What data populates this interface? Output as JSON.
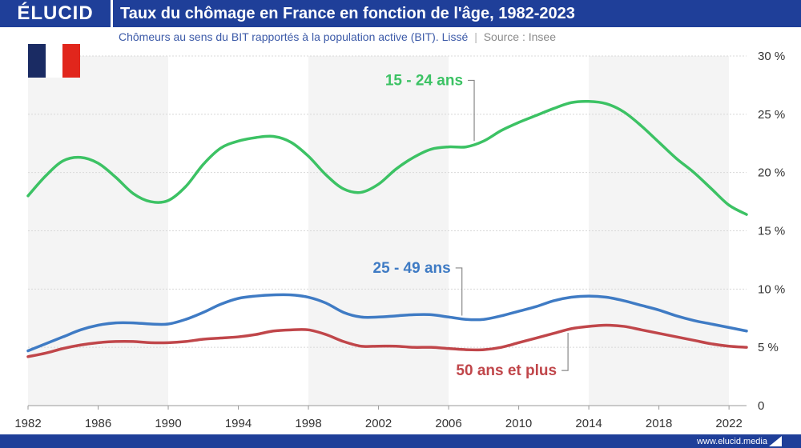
{
  "header": {
    "logo": "ÉLUCID",
    "title": "Taux du chômage en France en fonction de l'âge, 1982-2023"
  },
  "subtitle": {
    "text": "Chômeurs au sens du BIT rapportés à la population active (BIT). Lissé",
    "separator": "|",
    "source": "Source : Insee"
  },
  "flag": {
    "colors": [
      "#1a2b63",
      "#ffffff",
      "#e1261c"
    ]
  },
  "footer": {
    "url": "www.elucid.media"
  },
  "colors": {
    "header_bg": "#1f3f99",
    "green": "#3cc264",
    "blue": "#3f7bc4",
    "red": "#c0464a",
    "band": "#f4f4f4"
  },
  "chart_data": {
    "type": "line",
    "title": "Taux du chômage en France en fonction de l'âge, 1982-2023",
    "xlabel": "",
    "ylabel": "",
    "xlim": [
      1982,
      2023
    ],
    "ylim": [
      0,
      30
    ],
    "x_ticks": [
      1982,
      1986,
      1990,
      1994,
      1998,
      2002,
      2006,
      2010,
      2014,
      2018,
      2022
    ],
    "y_ticks": [
      0,
      5,
      10,
      15,
      20,
      25,
      30
    ],
    "y_tick_labels": [
      "0",
      "5 %",
      "10 %",
      "15 %",
      "20 %",
      "25 %",
      "30 %"
    ],
    "shaded_bands": [
      [
        1982,
        1990
      ],
      [
        1998,
        2006
      ],
      [
        2014,
        2022
      ]
    ],
    "grid": "horizontal",
    "series": [
      {
        "name": "15 - 24 ans",
        "color": "#3cc264",
        "label_x": 2004.6,
        "label_y": 27.5,
        "x": [
          1982,
          1983,
          1984,
          1985,
          1986,
          1987,
          1988,
          1989,
          1990,
          1991,
          1992,
          1993,
          1994,
          1995,
          1996,
          1997,
          1998,
          1999,
          2000,
          2001,
          2002,
          2003,
          2004,
          2005,
          2006,
          2007,
          2008,
          2009,
          2010,
          2011,
          2012,
          2013,
          2014,
          2015,
          2016,
          2017,
          2018,
          2019,
          2020,
          2021,
          2022,
          2023
        ],
        "values": [
          18.0,
          19.7,
          21.0,
          21.3,
          20.8,
          19.6,
          18.2,
          17.5,
          17.6,
          18.8,
          20.7,
          22.1,
          22.7,
          23.0,
          23.1,
          22.6,
          21.4,
          19.8,
          18.6,
          18.3,
          19.0,
          20.3,
          21.3,
          22.0,
          22.2,
          22.2,
          22.7,
          23.6,
          24.3,
          24.9,
          25.5,
          26.0,
          26.1,
          25.9,
          25.2,
          24.0,
          22.6,
          21.2,
          20.0,
          18.6,
          17.2,
          16.4
        ]
      },
      {
        "name": "25 - 49 ans",
        "color": "#3f7bc4",
        "label_x": 2003.9,
        "label_y": 11.4,
        "x": [
          1982,
          1983,
          1984,
          1985,
          1986,
          1987,
          1988,
          1989,
          1990,
          1991,
          1992,
          1993,
          1994,
          1995,
          1996,
          1997,
          1998,
          1999,
          2000,
          2001,
          2002,
          2003,
          2004,
          2005,
          2006,
          2007,
          2008,
          2009,
          2010,
          2011,
          2012,
          2013,
          2014,
          2015,
          2016,
          2017,
          2018,
          2019,
          2020,
          2021,
          2022,
          2023
        ],
        "values": [
          4.7,
          5.3,
          5.9,
          6.5,
          6.9,
          7.1,
          7.1,
          7.0,
          7.0,
          7.4,
          8.0,
          8.7,
          9.2,
          9.4,
          9.5,
          9.5,
          9.3,
          8.8,
          8.0,
          7.6,
          7.6,
          7.7,
          7.8,
          7.8,
          7.6,
          7.4,
          7.4,
          7.7,
          8.1,
          8.5,
          9.0,
          9.3,
          9.4,
          9.3,
          9.0,
          8.6,
          8.2,
          7.7,
          7.3,
          7.0,
          6.7,
          6.4
        ]
      },
      {
        "name": "50 ans et plus",
        "color": "#c0464a",
        "label_x": 2009.3,
        "label_y": 2.6,
        "x": [
          1982,
          1983,
          1984,
          1985,
          1986,
          1987,
          1988,
          1989,
          1990,
          1991,
          1992,
          1993,
          1994,
          1995,
          1996,
          1997,
          1998,
          1999,
          2000,
          2001,
          2002,
          2003,
          2004,
          2005,
          2006,
          2007,
          2008,
          2009,
          2010,
          2011,
          2012,
          2013,
          2014,
          2015,
          2016,
          2017,
          2018,
          2019,
          2020,
          2021,
          2022,
          2023
        ],
        "values": [
          4.2,
          4.5,
          4.9,
          5.2,
          5.4,
          5.5,
          5.5,
          5.4,
          5.4,
          5.5,
          5.7,
          5.8,
          5.9,
          6.1,
          6.4,
          6.5,
          6.5,
          6.1,
          5.5,
          5.1,
          5.1,
          5.1,
          5.0,
          5.0,
          4.9,
          4.8,
          4.8,
          5.0,
          5.4,
          5.8,
          6.2,
          6.6,
          6.8,
          6.9,
          6.8,
          6.5,
          6.2,
          5.9,
          5.6,
          5.3,
          5.1,
          5.0
        ]
      }
    ]
  }
}
